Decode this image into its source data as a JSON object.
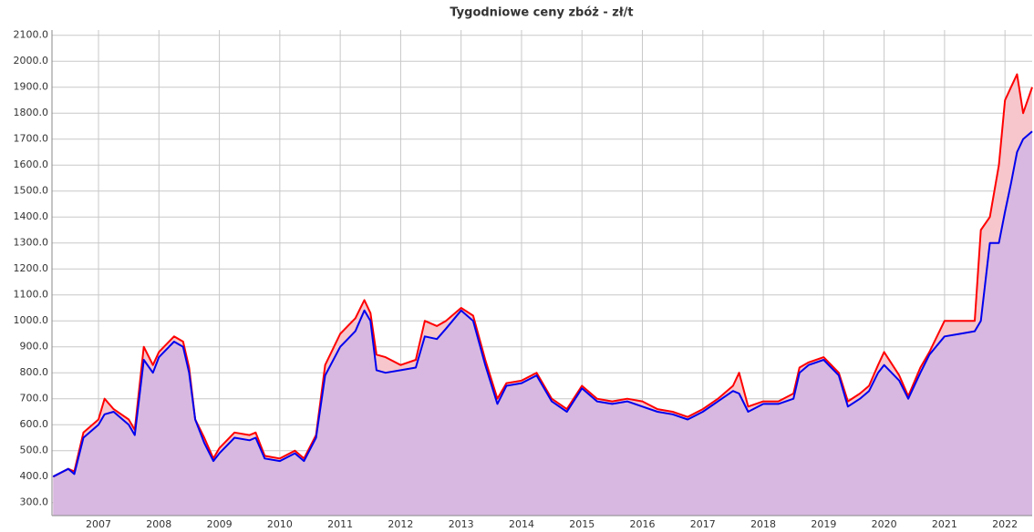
{
  "chart_data": {
    "type": "line",
    "title": "Tygodniowe ceny zbóż - zł/t",
    "x": [
      2006.25,
      2006.5,
      2006.6,
      2006.75,
      2007.0,
      2007.1,
      2007.25,
      2007.5,
      2007.6,
      2007.75,
      2007.9,
      2008.0,
      2008.25,
      2008.4,
      2008.5,
      2008.6,
      2008.75,
      2008.9,
      2009.0,
      2009.25,
      2009.5,
      2009.6,
      2009.75,
      2010.0,
      2010.25,
      2010.4,
      2010.6,
      2010.75,
      2011.0,
      2011.25,
      2011.4,
      2011.5,
      2011.6,
      2011.75,
      2012.0,
      2012.25,
      2012.4,
      2012.6,
      2012.75,
      2013.0,
      2013.2,
      2013.4,
      2013.6,
      2013.75,
      2014.0,
      2014.25,
      2014.5,
      2014.75,
      2015.0,
      2015.25,
      2015.5,
      2015.75,
      2016.0,
      2016.25,
      2016.5,
      2016.75,
      2017.0,
      2017.25,
      2017.5,
      2017.6,
      2017.75,
      2018.0,
      2018.25,
      2018.5,
      2018.6,
      2018.75,
      2019.0,
      2019.25,
      2019.4,
      2019.6,
      2019.75,
      2019.9,
      2020.0,
      2020.25,
      2020.4,
      2020.6,
      2020.75,
      2021.0,
      2021.25,
      2021.5,
      2021.6,
      2021.75,
      2021.9,
      2022.0,
      2022.1,
      2022.2,
      2022.3,
      2022.45
    ],
    "series": [
      {
        "color": "#ff0000",
        "fill": "#f6c6cc",
        "values": [
          400,
          430,
          420,
          570,
          620,
          700,
          660,
          620,
          580,
          900,
          830,
          880,
          940,
          920,
          820,
          620,
          550,
          470,
          510,
          570,
          560,
          570,
          480,
          470,
          500,
          470,
          560,
          830,
          950,
          1010,
          1080,
          1030,
          870,
          860,
          830,
          850,
          1000,
          980,
          1000,
          1050,
          1020,
          850,
          700,
          760,
          770,
          800,
          700,
          660,
          750,
          700,
          690,
          700,
          690,
          660,
          650,
          630,
          660,
          700,
          750,
          800,
          670,
          690,
          690,
          720,
          820,
          840,
          860,
          800,
          690,
          720,
          750,
          830,
          880,
          790,
          710,
          820,
          880,
          1000,
          1000,
          1000,
          1350,
          1400,
          1600,
          1850,
          1900,
          1950,
          1800,
          1900
        ]
      },
      {
        "color": "#0000ee",
        "fill": "#d8b8e0",
        "values": [
          400,
          430,
          410,
          550,
          600,
          640,
          650,
          600,
          560,
          850,
          800,
          860,
          920,
          900,
          800,
          620,
          530,
          460,
          490,
          550,
          540,
          550,
          470,
          460,
          490,
          460,
          550,
          790,
          900,
          960,
          1040,
          1000,
          810,
          800,
          810,
          820,
          940,
          930,
          970,
          1040,
          1000,
          830,
          680,
          750,
          760,
          790,
          690,
          650,
          740,
          690,
          680,
          690,
          670,
          650,
          640,
          620,
          650,
          690,
          730,
          720,
          650,
          680,
          680,
          700,
          800,
          830,
          850,
          790,
          670,
          700,
          730,
          800,
          830,
          770,
          700,
          800,
          870,
          940,
          950,
          960,
          1000,
          1300,
          1300,
          1420,
          1530,
          1650,
          1700,
          1730
        ]
      }
    ],
    "xlim": [
      2006.23,
      2022.45
    ],
    "xticks": [
      2007,
      2008,
      2009,
      2010,
      2011,
      2012,
      2013,
      2014,
      2015,
      2016,
      2017,
      2018,
      2019,
      2020,
      2021,
      2022
    ],
    "ylim": [
      250,
      2120
    ],
    "yticks": [
      {
        "value": 300,
        "label": "300.0"
      },
      {
        "value": 400,
        "label": "400.0"
      },
      {
        "value": 500,
        "label": "500.0"
      },
      {
        "value": 600,
        "label": "600.0"
      },
      {
        "value": 700,
        "label": "700.0"
      },
      {
        "value": 800,
        "label": "800.0"
      },
      {
        "value": 900,
        "label": "900.0"
      },
      {
        "value": 1000,
        "label": "1000.0"
      },
      {
        "value": 1100,
        "label": "1100.0"
      },
      {
        "value": 1200,
        "label": "1200.0"
      },
      {
        "value": 1300,
        "label": "1300.0"
      },
      {
        "value": 1400,
        "label": "1400.0"
      },
      {
        "value": 1500,
        "label": "1500.0"
      },
      {
        "value": 1600,
        "label": "1600.0"
      },
      {
        "value": 1700,
        "label": "1700.0"
      },
      {
        "value": 1800,
        "label": "1800.0"
      },
      {
        "value": 1900,
        "label": "1900.0"
      },
      {
        "value": 2000,
        "label": "2000.0"
      },
      {
        "value": 2100,
        "label": "2100.0"
      }
    ],
    "grid": true
  }
}
